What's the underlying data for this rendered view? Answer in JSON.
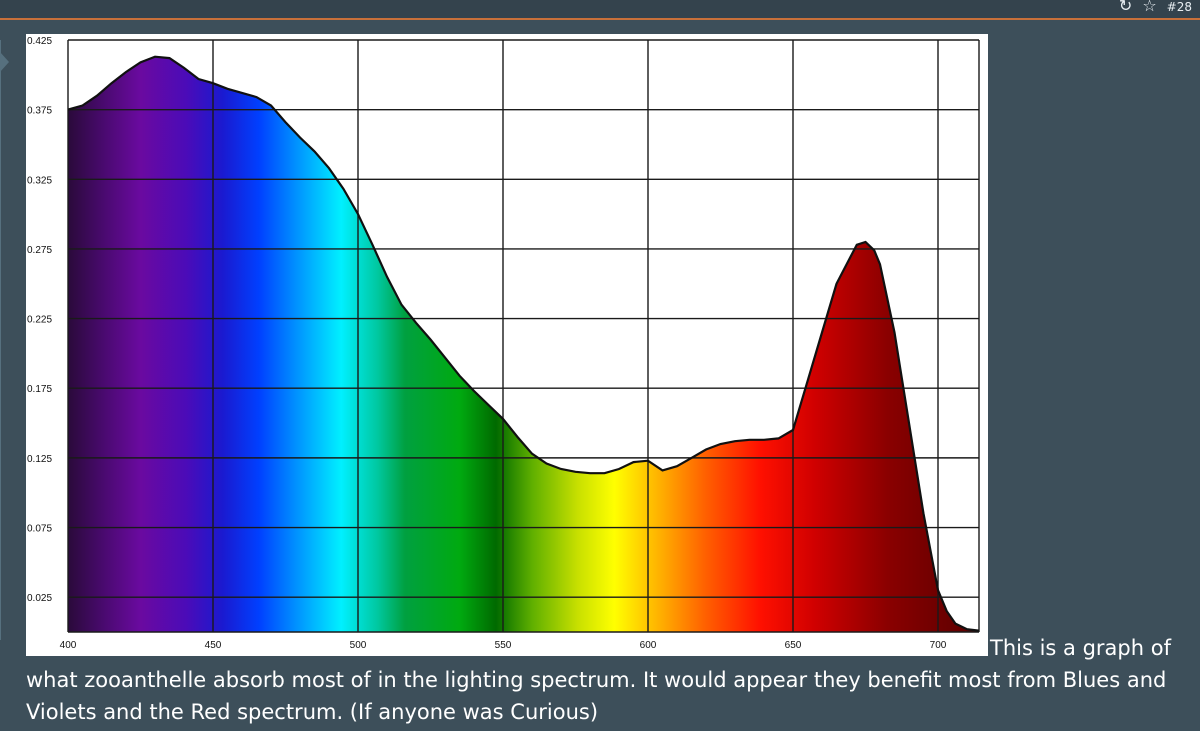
{
  "topbar": {
    "icons": [
      "share-icon",
      "star-icon"
    ],
    "counter": "#28"
  },
  "chart_data": {
    "type": "area",
    "title": "",
    "xlabel": "",
    "ylabel": "",
    "xlim": [
      400,
      715
    ],
    "ylim": [
      0,
      0.425
    ],
    "x_ticks": [
      400,
      450,
      500,
      550,
      600,
      650,
      700
    ],
    "y_ticks": [
      0.025,
      0.075,
      0.125,
      0.175,
      0.225,
      0.275,
      0.325,
      0.375,
      0.425
    ],
    "x_tick_labels": [
      "400",
      "450",
      "500",
      "550",
      "600",
      "650",
      "700"
    ],
    "y_tick_labels": [
      "0.025",
      "0.075",
      "0.125",
      "0.175",
      "0.225",
      "0.275",
      "0.325",
      "0.375",
      "0.425"
    ],
    "grid": true,
    "fill": "visible-spectrum-gradient",
    "series": [
      {
        "name": "",
        "x": [
          400,
          405,
          410,
          415,
          420,
          425,
          430,
          435,
          440,
          445,
          450,
          455,
          460,
          465,
          470,
          475,
          480,
          485,
          490,
          495,
          500,
          505,
          510,
          515,
          520,
          525,
          530,
          535,
          540,
          545,
          550,
          555,
          560,
          565,
          570,
          575,
          580,
          585,
          590,
          595,
          600,
          605,
          610,
          615,
          620,
          625,
          630,
          635,
          640,
          645,
          650,
          655,
          660,
          665,
          670,
          672,
          675,
          678,
          680,
          685,
          690,
          695,
          700,
          703,
          706,
          710,
          714
        ],
        "y": [
          0.375,
          0.378,
          0.385,
          0.394,
          0.402,
          0.409,
          0.413,
          0.412,
          0.405,
          0.397,
          0.394,
          0.39,
          0.387,
          0.384,
          0.378,
          0.366,
          0.355,
          0.345,
          0.333,
          0.318,
          0.3,
          0.278,
          0.255,
          0.235,
          0.222,
          0.21,
          0.197,
          0.184,
          0.173,
          0.163,
          0.153,
          0.14,
          0.128,
          0.121,
          0.117,
          0.115,
          0.114,
          0.114,
          0.117,
          0.122,
          0.123,
          0.116,
          0.119,
          0.125,
          0.131,
          0.135,
          0.137,
          0.138,
          0.138,
          0.139,
          0.145,
          0.18,
          0.215,
          0.25,
          0.27,
          0.278,
          0.28,
          0.274,
          0.264,
          0.215,
          0.15,
          0.085,
          0.03,
          0.015,
          0.006,
          0.002,
          0.001
        ]
      }
    ]
  },
  "caption": {
    "first_line": "This is a graph of",
    "rest": "what zooanthelle absorb most of in the lighting spectrum. It would appear they benefit most from Blues and Violets and the Red spectrum. (If anyone was Curious)"
  }
}
